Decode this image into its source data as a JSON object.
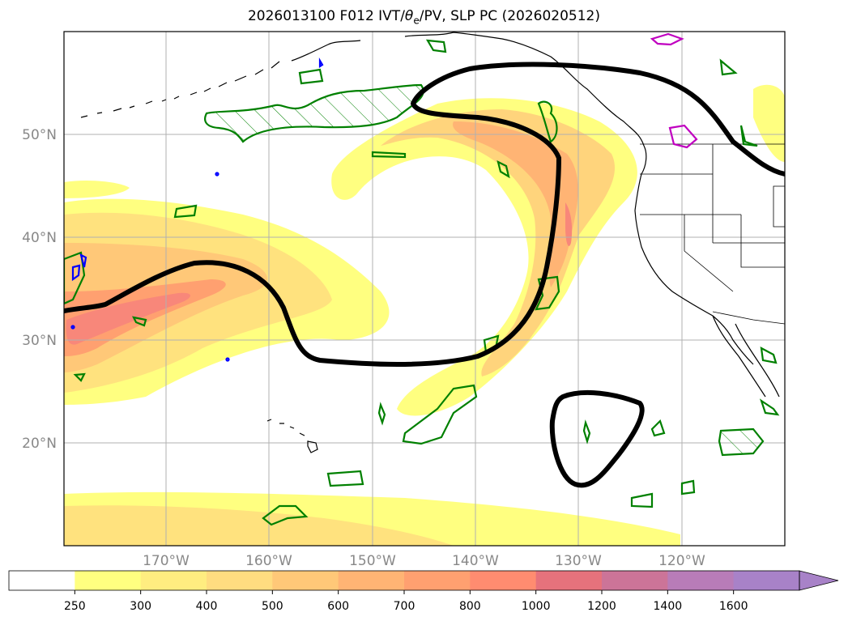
{
  "title_main": "2026013100 F012 IVT/",
  "title_sym": "θ",
  "title_sub": "e",
  "title_tail": "/PV, SLP PC (2026020512)",
  "map": {
    "lon_labels": [
      "170°W",
      "160°W",
      "150°W",
      "140°W",
      "130°W",
      "120°W"
    ],
    "lat_labels": [
      "50°N",
      "40°N",
      "30°N",
      "20°N"
    ]
  },
  "colorbar": {
    "levels": [
      "250",
      "300",
      "400",
      "500",
      "600",
      "700",
      "800",
      "1000",
      "1200",
      "1400",
      "1600"
    ],
    "colors": [
      "#ffffff",
      "#ffff80",
      "#ffed80",
      "#ffdc80",
      "#ffc878",
      "#ffb474",
      "#ffa070",
      "#ff8c70",
      "#e6727c",
      "#cc7498",
      "#b87cb8",
      "#a882c8"
    ]
  },
  "colors": {
    "slp": "#000000",
    "pv": "#008000",
    "theta": "#c000c0",
    "neg": "#0000ff",
    "grid": "#b0b0b0",
    "coast": "#000000"
  }
}
